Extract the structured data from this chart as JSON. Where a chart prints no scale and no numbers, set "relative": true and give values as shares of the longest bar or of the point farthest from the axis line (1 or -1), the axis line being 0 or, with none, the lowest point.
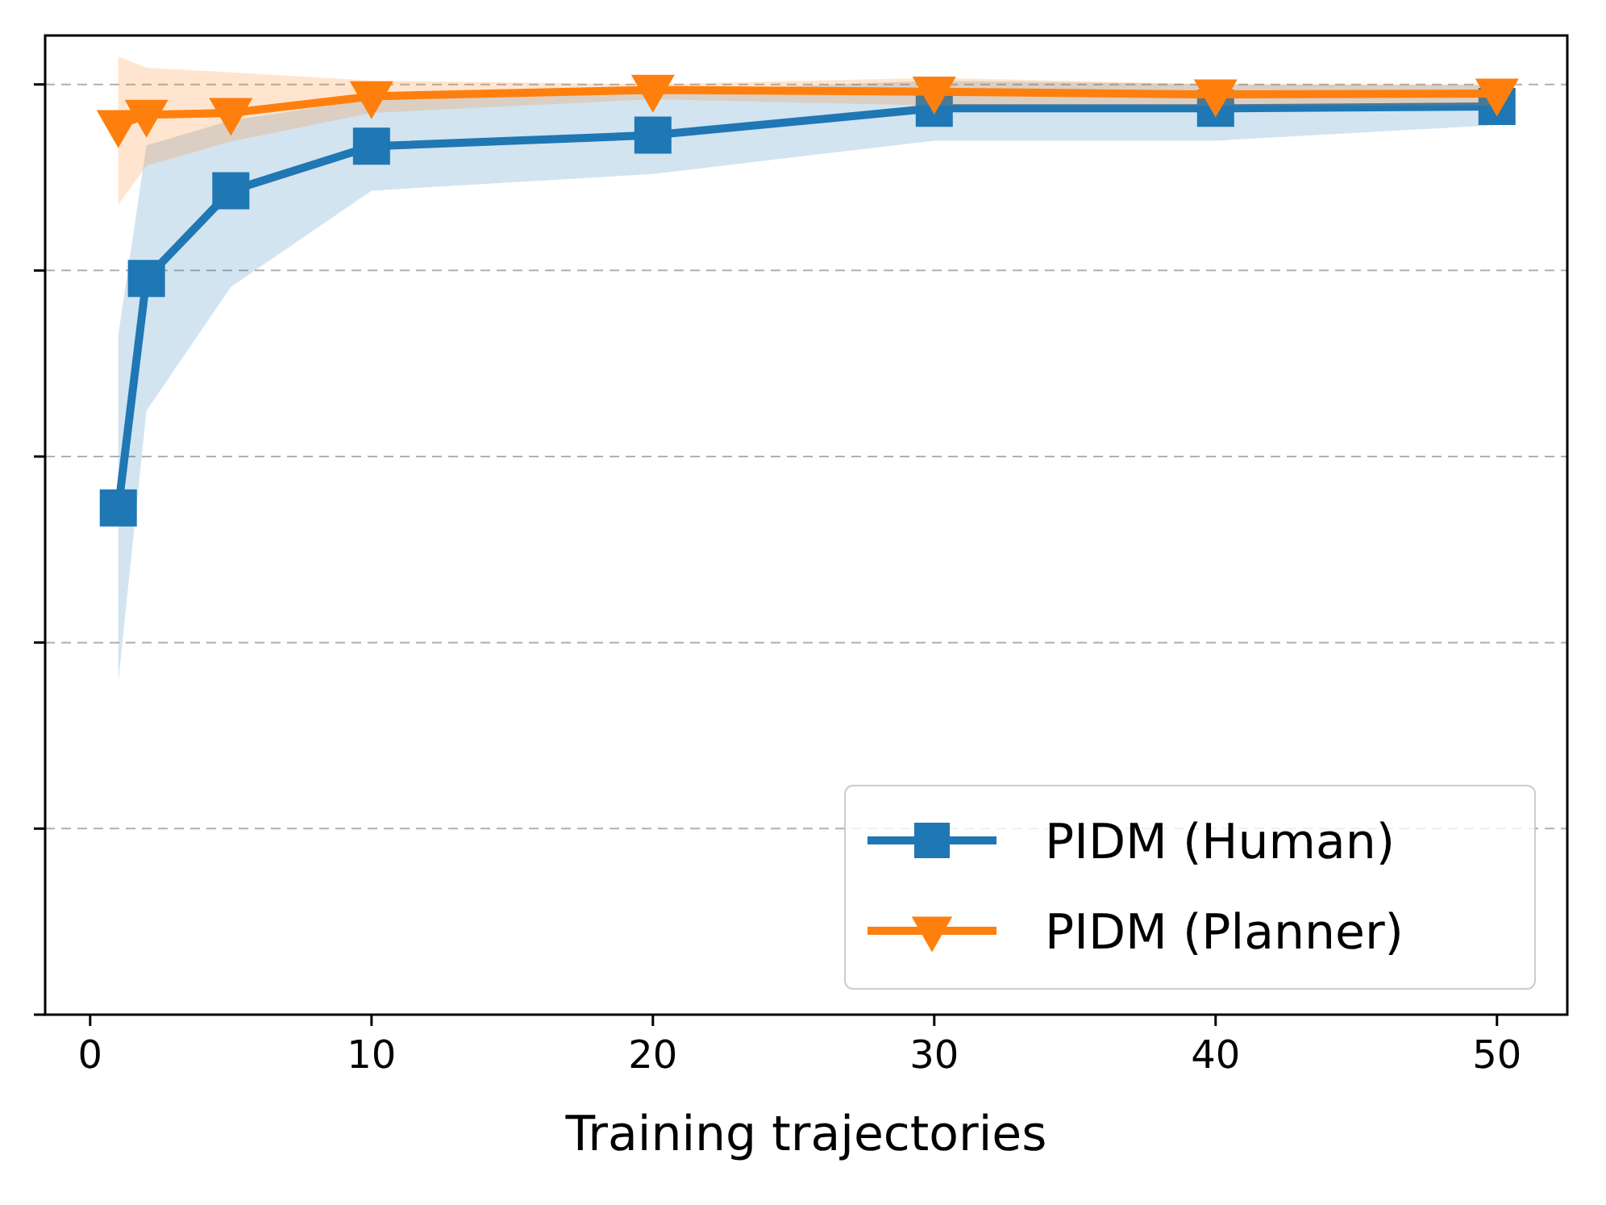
{
  "chart_data": {
    "type": "line",
    "xlabel": "Training trajectories",
    "relative": true,
    "x": [
      1,
      2,
      5,
      10,
      20,
      30,
      40,
      50
    ],
    "xlim": [
      -1.6,
      52.5
    ],
    "xticks": [
      0,
      10,
      20,
      30,
      40,
      50
    ],
    "tick_labels": "x",
    "grid": "y",
    "legend": "bottom right",
    "line_style": "solid",
    "series": [
      {
        "name": "PIDM (Human)",
        "color": "#1f77b4",
        "marker": "square",
        "values": [
          0.548,
          0.796,
          0.891,
          0.939,
          0.951,
          0.98,
          0.98,
          0.982
        ],
        "lower": [
          0.36,
          0.653,
          0.787,
          0.891,
          0.909,
          0.945,
          0.945,
          0.962
        ],
        "upper": [
          0.735,
          0.94,
          0.967,
          0.99,
          0.998,
          1.01,
          1.006,
          1.005
        ]
      },
      {
        "name": "PIDM (Planner)",
        "color": "#ff7f0e",
        "marker": "triangle",
        "values": [
          0.962,
          0.973,
          0.975,
          0.993,
          1,
          0.998,
          0.995,
          0.996
        ],
        "lower": [
          0.876,
          0.918,
          0.944,
          0.975,
          0.99,
          0.983,
          0.983,
          0.983
        ],
        "upper": [
          1.036,
          1.024,
          1.019,
          1.01,
          1.006,
          1.013,
          1.006,
          1.006
        ]
      }
    ]
  }
}
